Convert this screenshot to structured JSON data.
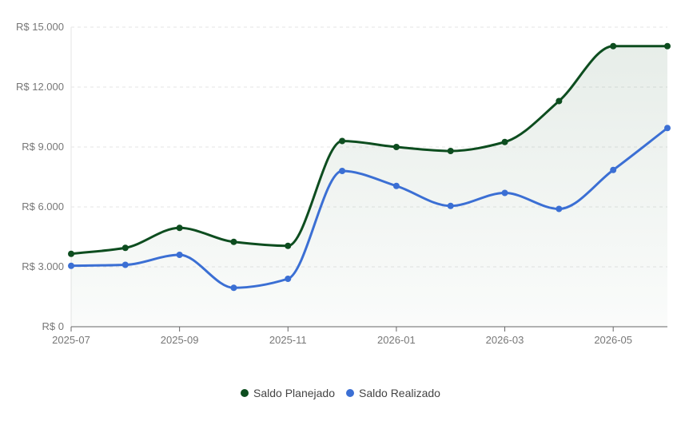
{
  "chart_data": {
    "type": "line",
    "x": [
      "2025-07",
      "2025-08",
      "2025-09",
      "2025-10",
      "2025-11",
      "2025-12",
      "2026-01",
      "2026-02",
      "2026-03",
      "2026-04",
      "2026-05",
      "2026-06"
    ],
    "x_tick_labels": [
      "2025-07",
      "2025-09",
      "2025-11",
      "2026-01",
      "2026-03",
      "2026-05"
    ],
    "y_tick_labels": [
      "R$ 0",
      "R$ 3.000",
      "R$ 6.000",
      "R$ 9.000",
      "R$ 12.000",
      "R$ 15.000"
    ],
    "ylim": [
      0,
      15000
    ],
    "grid": true,
    "legend_position": "bottom-center",
    "series": [
      {
        "name": "Saldo Planejado",
        "color": "#0d4d1f",
        "area_fill": true,
        "values": [
          3650,
          3950,
          4950,
          4250,
          4050,
          9300,
          9000,
          8800,
          9250,
          11300,
          14050,
          14050
        ]
      },
      {
        "name": "Saldo Realizado",
        "color": "#3b6fd4",
        "area_fill": false,
        "values": [
          3050,
          3100,
          3600,
          1950,
          2400,
          7800,
          7050,
          6050,
          6700,
          5900,
          7850,
          9950
        ]
      }
    ]
  }
}
